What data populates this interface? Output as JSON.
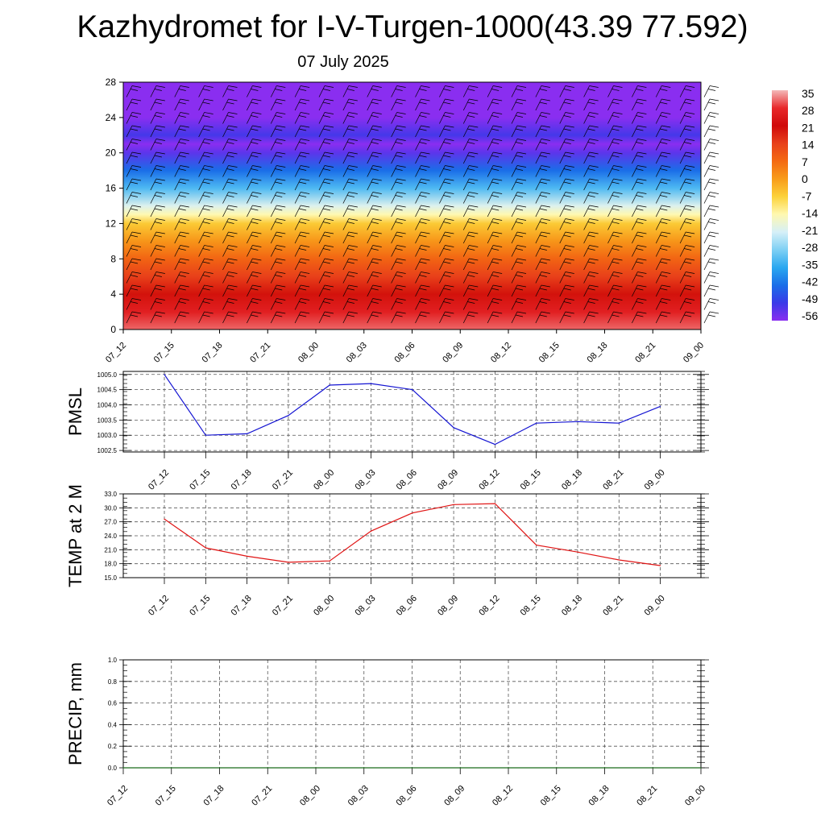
{
  "title": "Kazhydromet for I-V-Turgen-1000(43.39 77.592)",
  "subtitle": "07 July 2025",
  "chart_data": [
    {
      "type": "heatmap",
      "name": "temperature-height-section",
      "x_ticks": [
        "07_12",
        "07_15",
        "07_18",
        "07_21",
        "08_00",
        "08_03",
        "08_06",
        "08_09",
        "08_12",
        "08_15",
        "08_18",
        "08_21",
        "09_00"
      ],
      "y_ticks": [
        "0",
        "4",
        "8",
        "12",
        "16",
        "20",
        "24",
        "28"
      ],
      "ylim": [
        0,
        28
      ],
      "profile_levels": [
        0,
        2,
        4,
        6,
        8,
        10,
        12,
        13,
        14,
        16,
        18,
        20,
        21,
        22,
        24,
        26,
        28
      ],
      "profile_values": [
        31,
        26,
        20,
        14,
        8,
        1,
        -6,
        -14,
        -20,
        -32,
        -42,
        -52,
        -56,
        -50,
        -60,
        -62,
        -62
      ],
      "colorbar": {
        "labels": [
          "35",
          "28",
          "21",
          "14",
          "7",
          "0",
          "-7",
          "-14",
          "-21",
          "-28",
          "-35",
          "-42",
          "-49",
          "-56"
        ],
        "colors": [
          "#f4b8b8",
          "#e8282a",
          "#d00a0a",
          "#e8401a",
          "#f46a12",
          "#f89c1a",
          "#fcd23a",
          "#fff8b0",
          "#d6f0f8",
          "#7fd0f4",
          "#2aa8f0",
          "#1a6ee8",
          "#3a3ae8",
          "#8a2ef0"
        ]
      },
      "grid": false
    },
    {
      "type": "line",
      "name": "pmsl",
      "ylabel": "PMSL",
      "categories": [
        "07_12",
        "07_15",
        "07_18",
        "07_21",
        "08_00",
        "08_03",
        "08_06",
        "08_09",
        "08_12",
        "08_15",
        "08_18",
        "08_21",
        "09_00"
      ],
      "y_ticks": [
        "1002.5",
        "1003.0",
        "1003.5",
        "1004.0",
        "1004.5",
        "1005.0"
      ],
      "ylim": [
        1002.45,
        1005.1
      ],
      "series": [
        {
          "values": [
            1005.0,
            1003.0,
            1003.05,
            1003.65,
            1004.65,
            1004.7,
            1004.5,
            1003.25,
            1002.7,
            1003.4,
            1003.45,
            1003.4,
            1003.95
          ],
          "color": "#1414d2"
        }
      ],
      "grid": true
    },
    {
      "type": "line",
      "name": "temp2m",
      "ylabel": "TEMP at 2 M",
      "categories": [
        "07_12",
        "07_15",
        "07_18",
        "07_21",
        "08_00",
        "08_03",
        "08_06",
        "08_09",
        "08_12",
        "08_15",
        "08_18",
        "08_21",
        "09_00"
      ],
      "y_ticks": [
        "15.0",
        "18.0",
        "21.0",
        "24.0",
        "27.0",
        "30.0",
        "33.0"
      ],
      "ylim": [
        15,
        33
      ],
      "series": [
        {
          "values": [
            27.6,
            21.4,
            19.6,
            18.3,
            18.6,
            25.0,
            28.9,
            30.7,
            30.9,
            22.0,
            20.5,
            18.8,
            17.6
          ],
          "color": "#e01414"
        }
      ],
      "grid": true
    },
    {
      "type": "line",
      "name": "precip",
      "ylabel": "PRECIP, mm",
      "categories": [
        "07_12",
        "07_15",
        "07_18",
        "07_21",
        "08_00",
        "08_03",
        "08_06",
        "08_09",
        "08_12",
        "08_15",
        "08_18",
        "08_21",
        "09_00"
      ],
      "y_ticks": [
        "0.0",
        "0.2",
        "0.4",
        "0.6",
        "0.8",
        "1.0"
      ],
      "ylim": [
        0,
        1
      ],
      "series": [
        {
          "values": [
            0,
            0,
            0,
            0,
            0,
            0,
            0,
            0,
            0,
            0,
            0,
            0,
            0
          ],
          "color": "#1a6a1a"
        }
      ],
      "grid": true
    }
  ]
}
